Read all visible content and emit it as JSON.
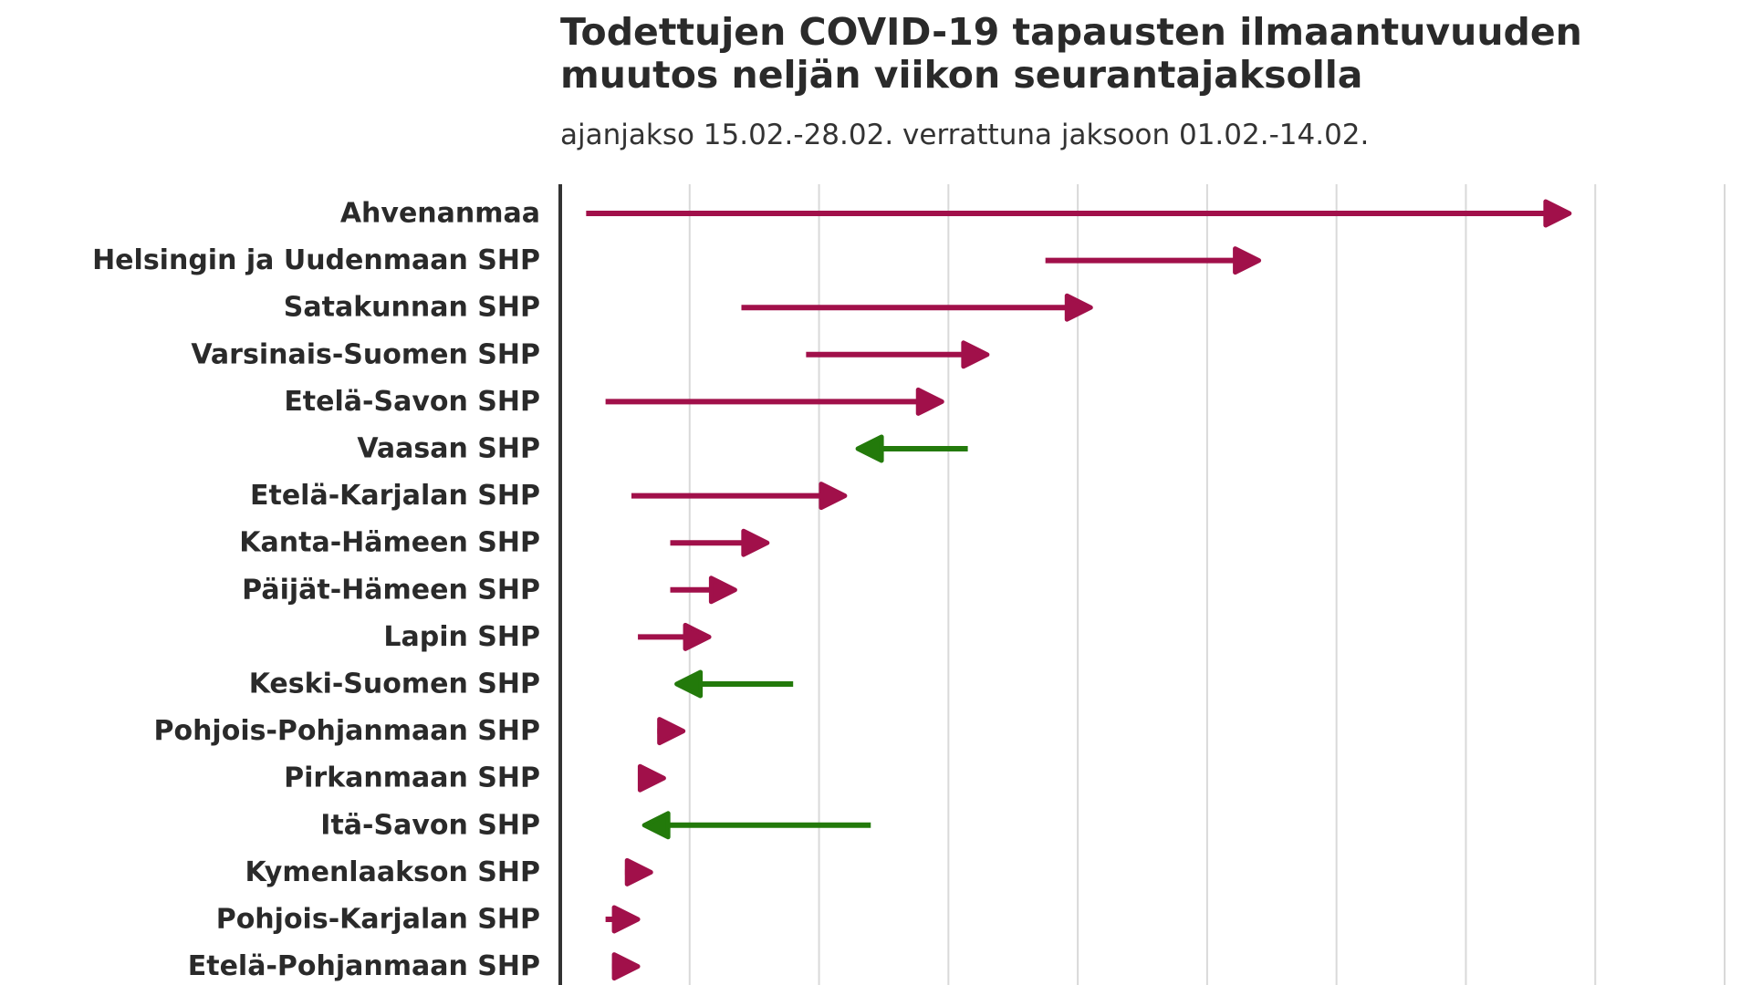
{
  "chart_data": {
    "type": "arrow",
    "title": "Todettujen COVID-19 tapausten ilmaantuvuuden muutos neljän viikon seurantajaksolla",
    "subtitle": "ajanjakso 15.02.-28.02. verrattuna jaksoon 01.02.-14.02.",
    "xlim": [
      0,
      180
    ],
    "xgrid": [
      20,
      40,
      60,
      80,
      100,
      120,
      140,
      160,
      180
    ],
    "grid": true,
    "colors": {
      "increase": "#a1104a",
      "decrease": "#237a0b"
    },
    "rows": [
      {
        "label": "Ahvenanmaa",
        "start": 4,
        "end": 156
      },
      {
        "label": "Helsingin ja Uudenmaan SHP",
        "start": 75,
        "end": 108
      },
      {
        "label": "Satakunnan SHP",
        "start": 28,
        "end": 82
      },
      {
        "label": "Varsinais-Suomen SHP",
        "start": 38,
        "end": 66
      },
      {
        "label": "Etelä-Savon SHP",
        "start": 7,
        "end": 59
      },
      {
        "label": "Vaasan SHP",
        "start": 63,
        "end": 46
      },
      {
        "label": "Etelä-Karjalan SHP",
        "start": 11,
        "end": 44
      },
      {
        "label": "Kanta-Hämeen SHP",
        "start": 17,
        "end": 32
      },
      {
        "label": "Päijät-Hämeen SHP",
        "start": 17,
        "end": 27
      },
      {
        "label": "Lapin SHP",
        "start": 12,
        "end": 23
      },
      {
        "label": "Keski-Suomen SHP",
        "start": 36,
        "end": 18
      },
      {
        "label": "Pohjois-Pohjanmaan SHP",
        "start": 15,
        "end": 19
      },
      {
        "label": "Pirkanmaan SHP",
        "start": 13,
        "end": 16
      },
      {
        "label": "Itä-Savon SHP",
        "start": 48,
        "end": 13
      },
      {
        "label": "Kymenlaakson SHP",
        "start": 10,
        "end": 14
      },
      {
        "label": "Pohjois-Karjalan SHP",
        "start": 7,
        "end": 12
      },
      {
        "label": "Etelä-Pohjanmaan SHP",
        "start": 8,
        "end": 12
      }
    ]
  }
}
